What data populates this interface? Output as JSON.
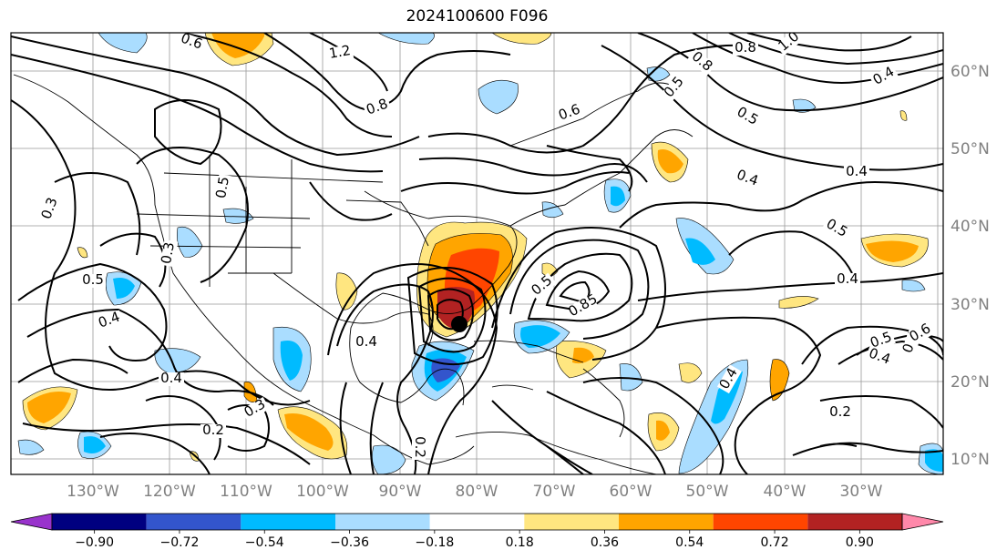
{
  "title": "2024100600 F096",
  "map": {
    "lon_labels": [
      "130°W",
      "120°W",
      "110°W",
      "100°W",
      "90°W",
      "80°W",
      "70°W",
      "60°W",
      "50°W",
      "40°W",
      "30°W"
    ],
    "lat_labels": [
      "60°N",
      "50°N",
      "40°N",
      "30°N",
      "20°N",
      "10°N"
    ],
    "contour_labels": [
      "0.6",
      "1.2",
      "0.8",
      "0.8",
      "0.8",
      "1.0",
      "0.5",
      "0.5",
      "0.4",
      "0.6",
      "0.4",
      "0.5",
      "0.4",
      "0.3",
      "0.3",
      "0.5",
      "0.4",
      "0.4",
      "0.4",
      "0.3",
      "0.2",
      "0.2",
      "0.4",
      "0.4",
      "0.5",
      "0.85",
      "0.5",
      "0.4",
      "0.2",
      "0.5",
      "0.6",
      "0.4"
    ]
  },
  "colorbar": {
    "ticks": [
      "−0.90",
      "−0.72",
      "−0.54",
      "−0.36",
      "−0.18",
      "0.18",
      "0.36",
      "0.54",
      "0.72",
      "0.90"
    ],
    "colors": [
      "#9933cc",
      "#000080",
      "#3355cc",
      "#00bbff",
      "#aaddff",
      "#ffffff",
      "#ffe680",
      "#ffa500",
      "#ff4500",
      "#b22222",
      "#ff88aa"
    ]
  }
}
